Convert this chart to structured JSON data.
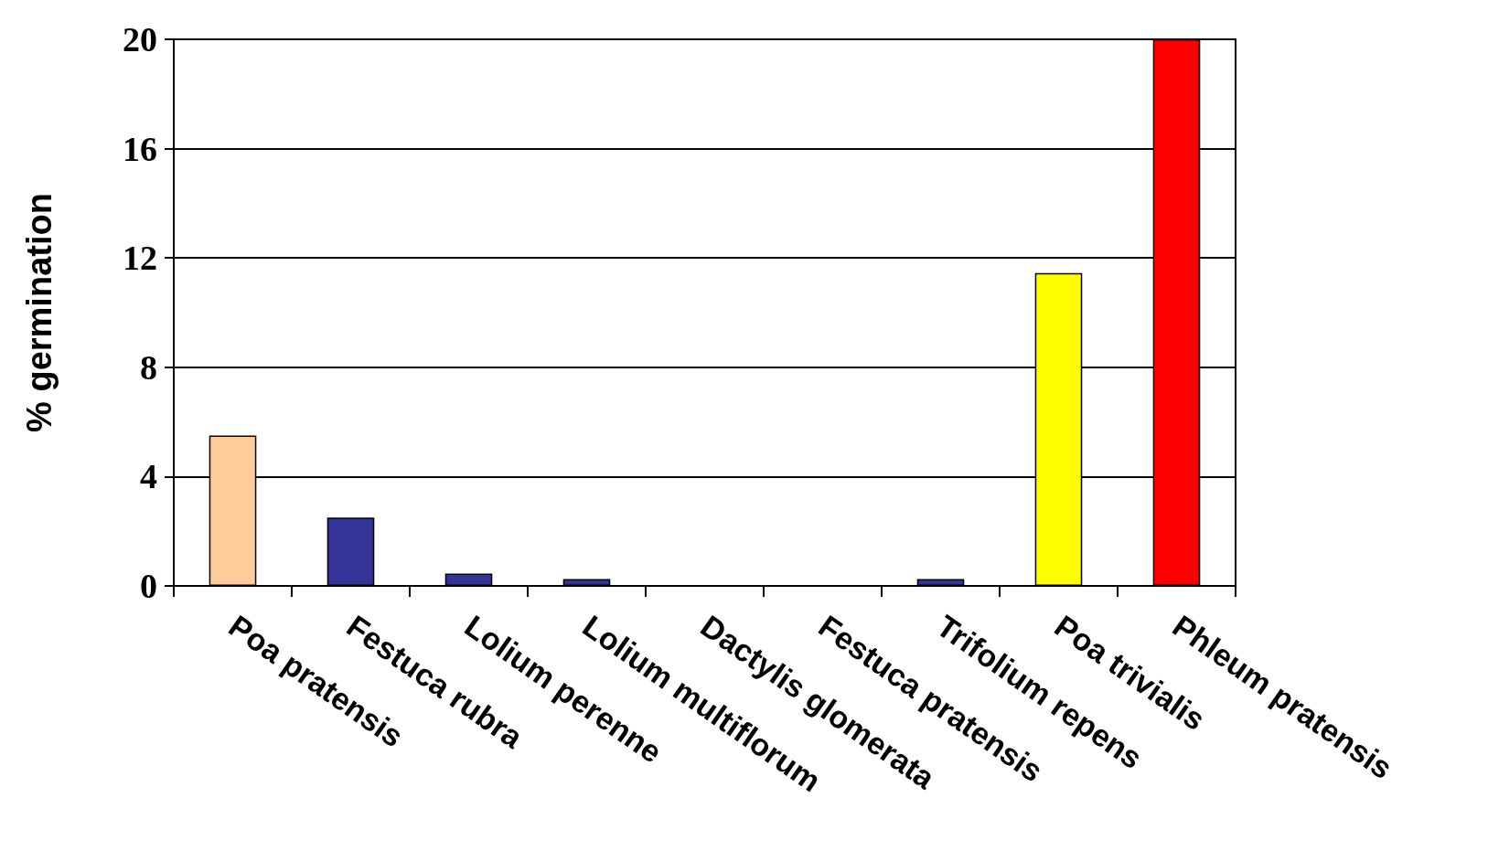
{
  "chart_data": {
    "type": "bar",
    "ylabel": "% germination",
    "categories": [
      "Poa pratensis",
      "Festuca rubra",
      "Lolium perenne",
      "Lolium multiflorum",
      "Dactylis glomerata",
      "Festuca pratensis",
      "Trifolium repens",
      "Poa trivialis",
      "Phleum pratensis"
    ],
    "values": [
      5.5,
      2.5,
      0.45,
      0.25,
      0,
      0,
      0.25,
      11.45,
      20
    ],
    "colors": [
      "#ffcc99",
      "#333399",
      "#333399",
      "#333399",
      "#333399",
      "#333399",
      "#333399",
      "#ffff00",
      "#ff0000"
    ],
    "ylim": [
      0,
      20
    ],
    "yticks": [
      0,
      4,
      8,
      12,
      16,
      20
    ],
    "grid": "y"
  }
}
